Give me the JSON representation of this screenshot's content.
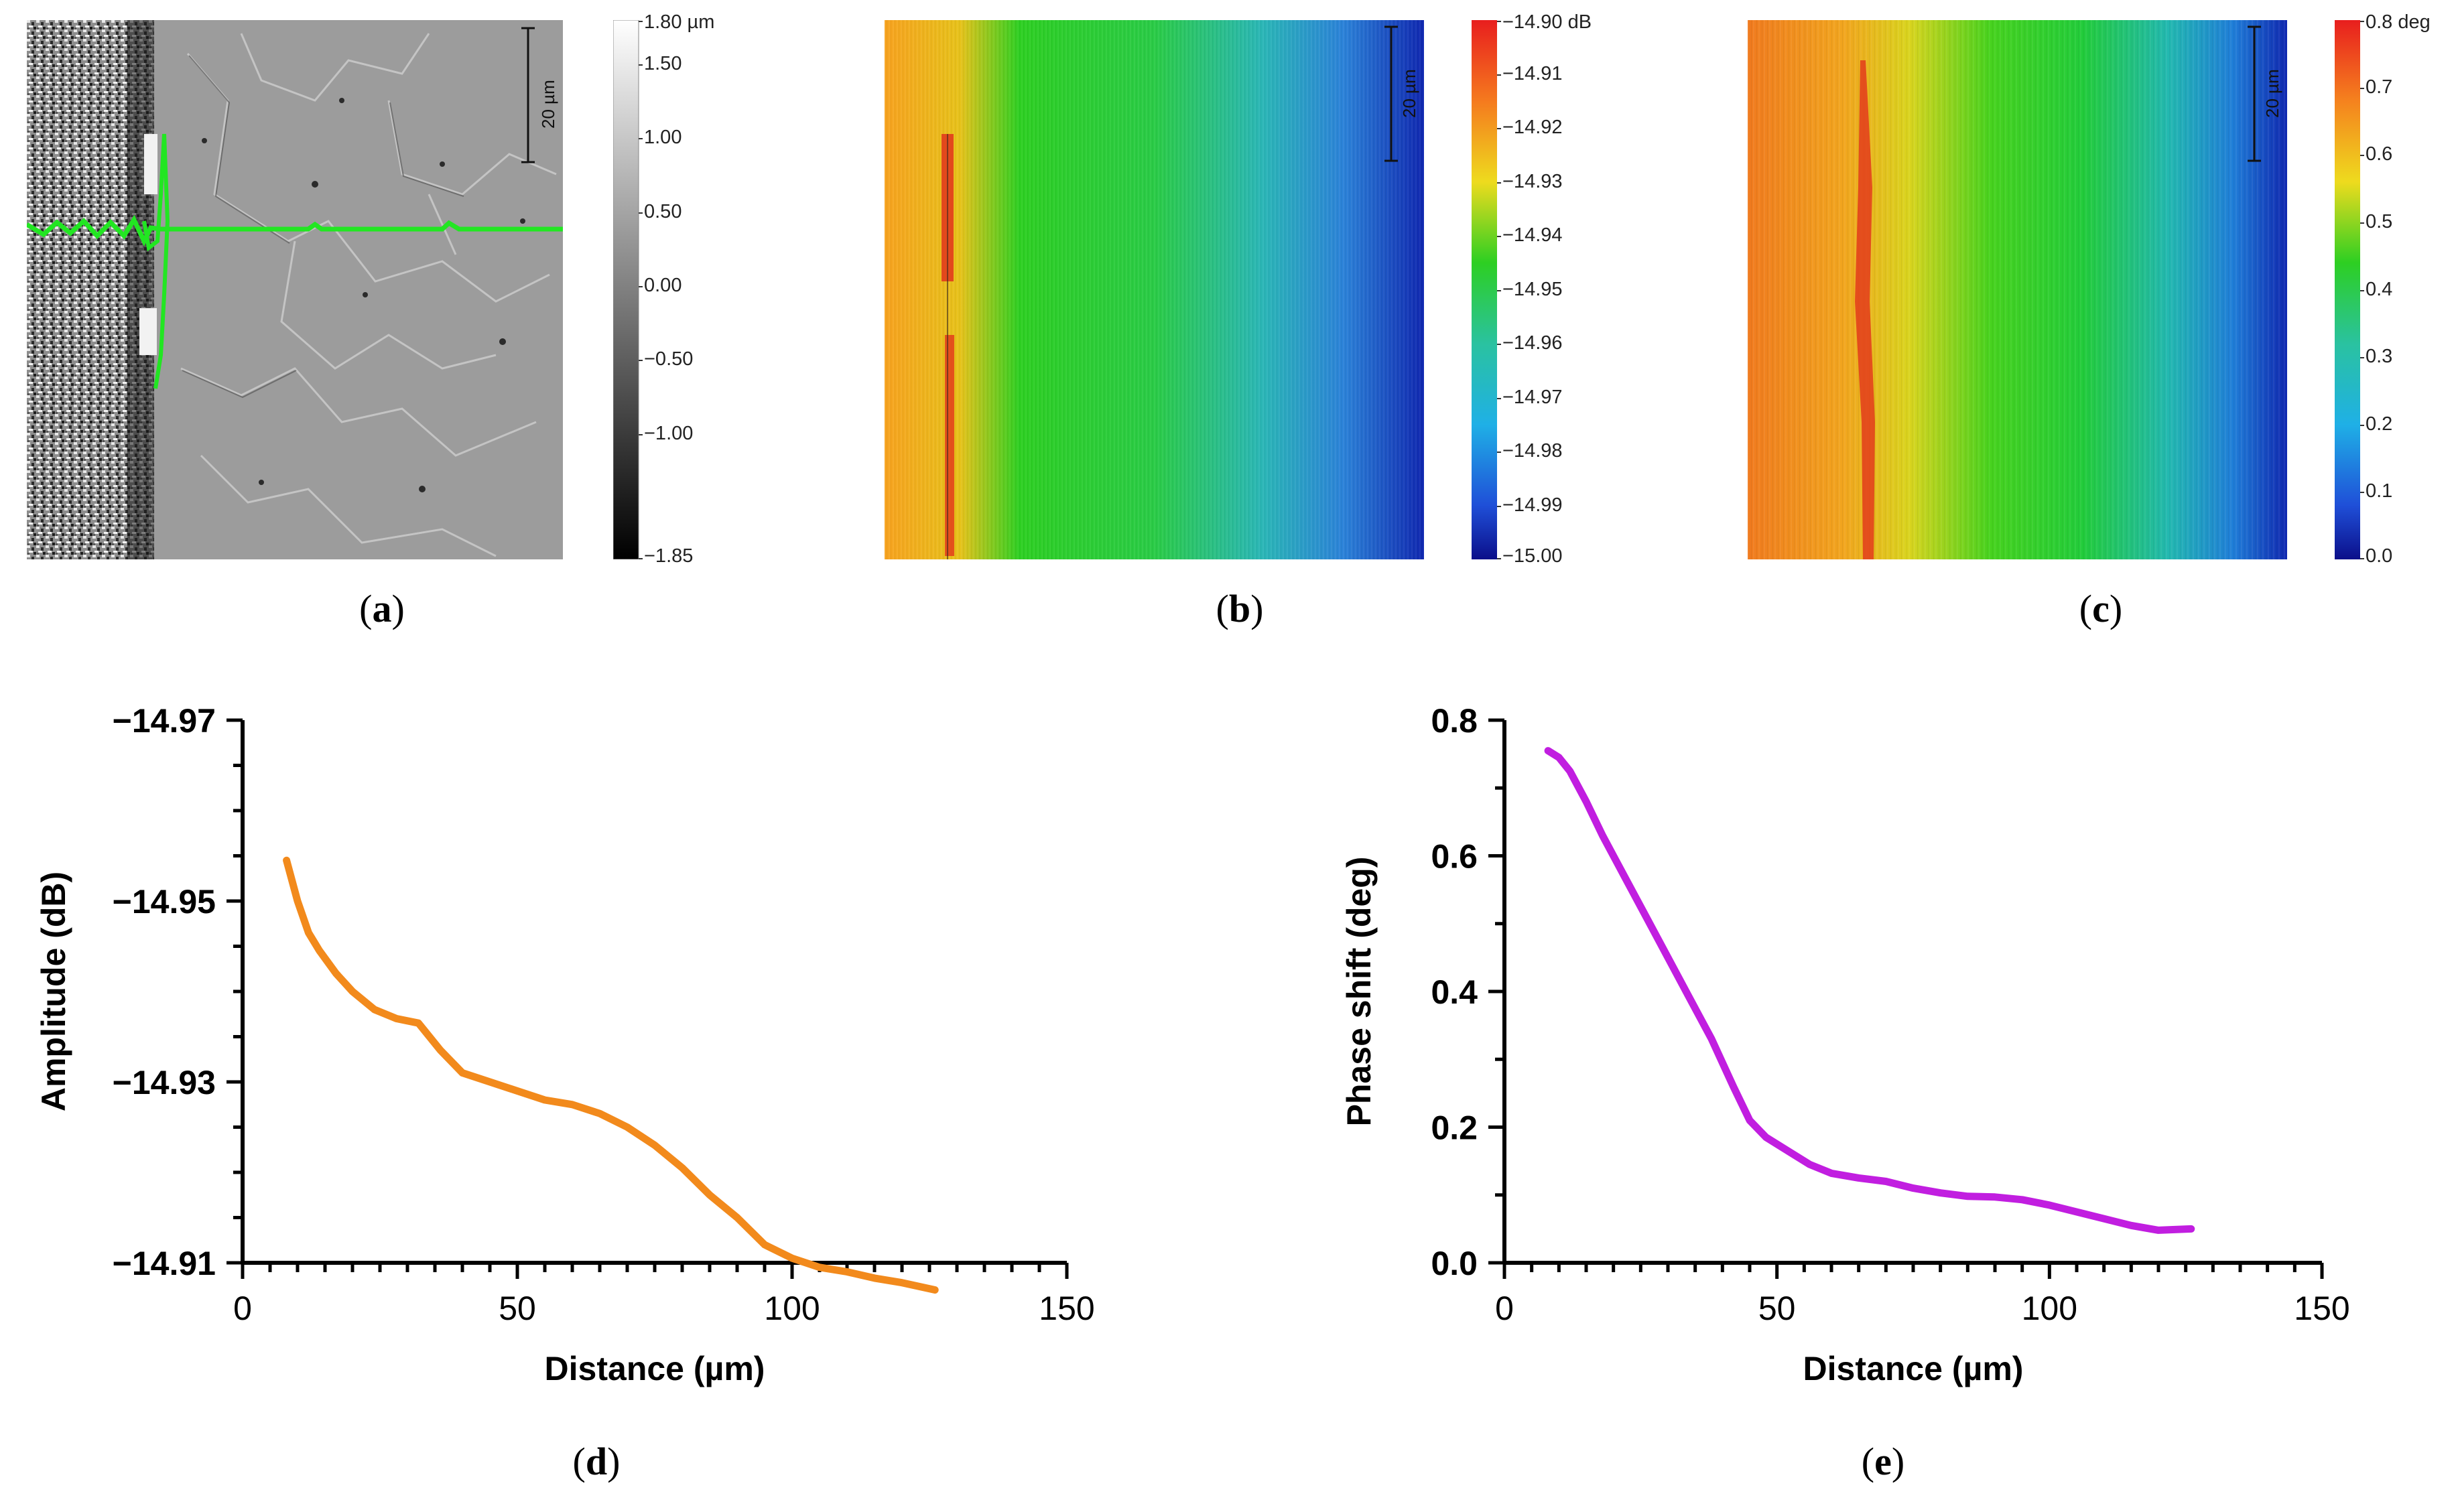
{
  "captions": {
    "a": {
      "open": "(",
      "letter": "a",
      "close": ")"
    },
    "b": {
      "open": "(",
      "letter": "b",
      "close": ")"
    },
    "c": {
      "open": "(",
      "letter": "c",
      "close": ")"
    },
    "d": {
      "open": "(",
      "letter": "d",
      "close": ")"
    },
    "e": {
      "open": "(",
      "letter": "e",
      "close": ")"
    }
  },
  "map_a": {
    "scale_bar": "20 µm",
    "colorbar_labels": [
      "1.80 µm",
      "1.50",
      "1.00",
      "0.50",
      "0.00",
      "−0.50",
      "−1.00",
      "−1.85"
    ],
    "colorbar_values": [
      1.8,
      1.5,
      1.0,
      0.5,
      0.0,
      -0.5,
      -1.0,
      -1.85
    ],
    "colorbar_min": -1.85,
    "colorbar_max": 1.8,
    "colors": {
      "profile_line": "#22e622",
      "surface": "#9a9a9a"
    }
  },
  "map_b": {
    "scale_bar": "20 µm",
    "colorbar_labels": [
      "−14.90 dB",
      "−14.91",
      "−14.92",
      "−14.93",
      "−14.94",
      "−14.95",
      "−14.96",
      "−14.97",
      "−14.98",
      "−14.99",
      "−15.00"
    ],
    "colorbar_values": [
      -14.9,
      -14.91,
      -14.92,
      -14.93,
      -14.94,
      -14.95,
      -14.96,
      -14.97,
      -14.98,
      -14.99,
      -15.0
    ],
    "colorbar_min": -15.0,
    "colorbar_max": -14.9
  },
  "map_c": {
    "scale_bar": "20 µm",
    "colorbar_labels": [
      "0.8 deg",
      "0.7",
      "0.6",
      "0.5",
      "0.4",
      "0.3",
      "0.2",
      "0.1",
      "0.0"
    ],
    "colorbar_values": [
      0.8,
      0.7,
      0.6,
      0.5,
      0.4,
      0.3,
      0.2,
      0.1,
      0.0
    ],
    "colorbar_min": 0.0,
    "colorbar_max": 0.8
  },
  "chart_data": [
    {
      "id": "d",
      "type": "line",
      "title": "",
      "xlabel": "Distance (µm)",
      "ylabel": "Amplitude (dB)",
      "xlim": [
        0,
        150
      ],
      "ylim": [
        -14.91,
        -14.97
      ],
      "ylim_note": "axis increases downward in value: -14.97 at top, -14.91 at bottom",
      "xticks": [
        0,
        50,
        100,
        150
      ],
      "xtick_labels": [
        "0",
        "50",
        "100",
        "150"
      ],
      "yticks": [
        -14.97,
        -14.95,
        -14.93,
        -14.91
      ],
      "ytick_labels": [
        "−14.97",
        "−14.95",
        "−14.93",
        "−14.91"
      ],
      "x_minor_step": 5,
      "y_minor_step": 0.005,
      "series": [
        {
          "name": "Amplitude",
          "color": "#f28a1c",
          "x": [
            8,
            10,
            12,
            14,
            17,
            20,
            24,
            28,
            32,
            36,
            40,
            45,
            50,
            55,
            60,
            65,
            70,
            75,
            80,
            85,
            90,
            95,
            100,
            105,
            110,
            115,
            120,
            126
          ],
          "y": [
            -14.9545,
            -14.95,
            -14.9465,
            -14.9445,
            -14.942,
            -14.94,
            -14.938,
            -14.937,
            -14.9365,
            -14.9335,
            -14.931,
            -14.93,
            -14.929,
            -14.928,
            -14.9275,
            -14.9265,
            -14.925,
            -14.923,
            -14.9205,
            -14.9175,
            -14.915,
            -14.912,
            -14.9105,
            -14.9095,
            -14.909,
            -14.9083,
            -14.9078,
            -14.907
          ]
        }
      ]
    },
    {
      "id": "e",
      "type": "line",
      "title": "",
      "xlabel": "Distance (µm)",
      "ylabel": "Phase shift (deg)",
      "xlim": [
        0,
        150
      ],
      "ylim": [
        0,
        0.8
      ],
      "xticks": [
        0,
        50,
        100,
        150
      ],
      "xtick_labels": [
        "0",
        "50",
        "100",
        "150"
      ],
      "yticks": [
        0,
        0.2,
        0.4,
        0.6,
        0.8
      ],
      "ytick_labels": [
        "0.0",
        "0.2",
        "0.4",
        "0.6",
        "0.8"
      ],
      "x_minor_step": 5,
      "y_minor_step": 0.1,
      "series": [
        {
          "name": "Phase shift",
          "color": "#c11ee0",
          "x": [
            8,
            10,
            12,
            15,
            18,
            22,
            26,
            30,
            34,
            38,
            42,
            45,
            48,
            52,
            56,
            60,
            65,
            70,
            75,
            80,
            85,
            90,
            95,
            100,
            105,
            110,
            115,
            120,
            126
          ],
          "y": [
            0.755,
            0.745,
            0.725,
            0.68,
            0.63,
            0.57,
            0.51,
            0.45,
            0.39,
            0.33,
            0.26,
            0.21,
            0.185,
            0.165,
            0.145,
            0.132,
            0.125,
            0.12,
            0.11,
            0.103,
            0.098,
            0.097,
            0.093,
            0.085,
            0.075,
            0.065,
            0.055,
            0.048,
            0.05
          ]
        }
      ]
    }
  ]
}
